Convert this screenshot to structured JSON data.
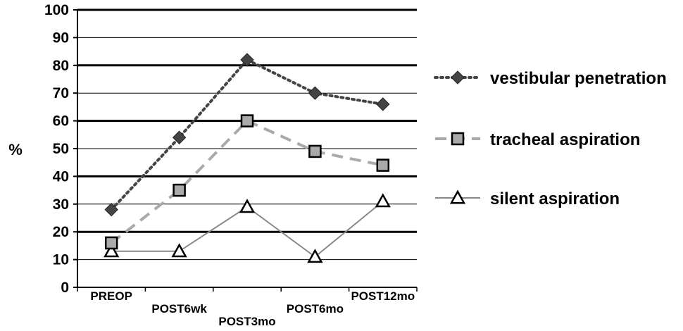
{
  "chart_data": {
    "type": "line",
    "title": "",
    "xlabel": "",
    "ylabel": "%",
    "ylim": [
      0,
      100
    ],
    "yticks": [
      0,
      10,
      20,
      30,
      40,
      50,
      60,
      70,
      80,
      90,
      100
    ],
    "grid": "major horizontal gridlines every 10, heavier at 20/40/60/80",
    "legend_position": "right",
    "categories": [
      "PREOP",
      "POST6wk",
      "POST3mo",
      "POST6mo",
      "POST12mo"
    ],
    "series": [
      {
        "name": "vestibular penetration",
        "values": [
          28,
          54,
          82,
          70,
          66
        ],
        "color": "#444444",
        "line_style": "dotted",
        "marker": "diamond"
      },
      {
        "name": "tracheal aspiration",
        "values": [
          16,
          35,
          60,
          49,
          44
        ],
        "color": "#aaaaaa",
        "line_style": "dashed",
        "marker": "square"
      },
      {
        "name": "silent aspiration",
        "values": [
          13,
          13,
          29,
          11,
          31
        ],
        "color": "#888888",
        "line_style": "solid",
        "marker": "triangle"
      }
    ]
  }
}
